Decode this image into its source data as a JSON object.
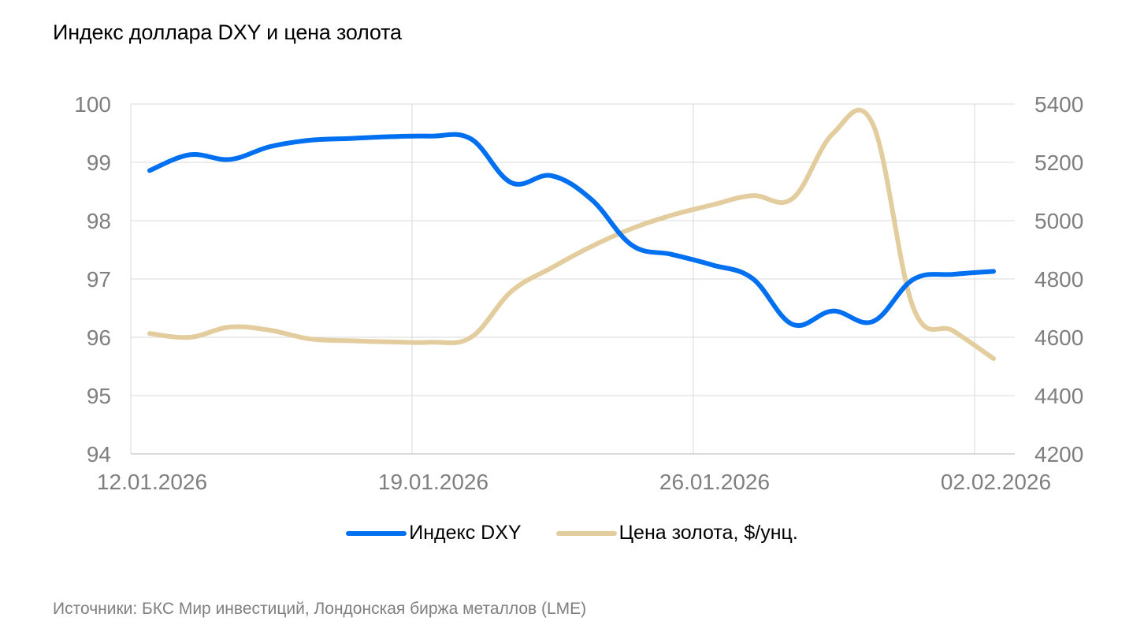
{
  "title": "Индекс доллара DXY и цена золота",
  "source": "Источники: БКС Мир инвестиций, Лондонская биржа металлов (LME)",
  "colors": {
    "dxy": "#0070f0",
    "gold": "#e3cd9f",
    "grid": "#d9d9d9",
    "axis_text": "#7f7f7f"
  },
  "legend": [
    {
      "label": "Индекс DXY",
      "color": "#0070f0"
    },
    {
      "label": "Цена золота, $/унц.",
      "color": "#e3cd9f"
    }
  ],
  "axes": {
    "x_ticks": [
      "12.01.2026",
      "19.01.2026",
      "26.01.2026",
      "02.02.2026"
    ],
    "y_left_ticks": [
      "100",
      "99",
      "98",
      "97",
      "96",
      "95",
      "94"
    ],
    "y_right_ticks": [
      "5400",
      "5200",
      "5000",
      "4800",
      "4600",
      "4400",
      "4200"
    ]
  },
  "chart_data": {
    "type": "line",
    "title": "Индекс доллара DXY и цена золота",
    "xlabel": "",
    "ylabel": "Индекс DXY",
    "y2label": "Цена золота, $/унц.",
    "ylim": [
      94,
      100
    ],
    "y2lim": [
      4200,
      5400
    ],
    "grid": true,
    "legend_position": "bottom",
    "x": [
      "12.01.2026",
      "13.01.2026",
      "14.01.2026",
      "15.01.2026",
      "16.01.2026",
      "17.01.2026",
      "18.01.2026",
      "19.01.2026",
      "20.01.2026",
      "21.01.2026",
      "22.01.2026",
      "23.01.2026",
      "24.01.2026",
      "25.01.2026",
      "26.01.2026",
      "27.01.2026",
      "28.01.2026",
      "29.01.2026",
      "30.01.2026",
      "31.01.2026",
      "01.02.2026",
      "02.02.2026"
    ],
    "series": [
      {
        "name": "Индекс DXY",
        "axis": "left",
        "values": [
          98.86,
          99.13,
          99.05,
          99.27,
          99.38,
          99.41,
          99.44,
          99.45,
          99.4,
          98.65,
          98.77,
          98.36,
          97.58,
          97.42,
          97.24,
          97.01,
          96.22,
          96.45,
          96.27,
          96.99,
          97.08,
          97.13
        ]
      },
      {
        "name": "Цена золота, $/унц.",
        "axis": "right",
        "values": [
          4613,
          4600,
          4635,
          4624,
          4594,
          4588,
          4584,
          4583,
          4600,
          4757,
          4838,
          4912,
          4973,
          5019,
          5054,
          5086,
          5076,
          5298,
          5330,
          4703,
          4622,
          4527
        ]
      }
    ]
  }
}
